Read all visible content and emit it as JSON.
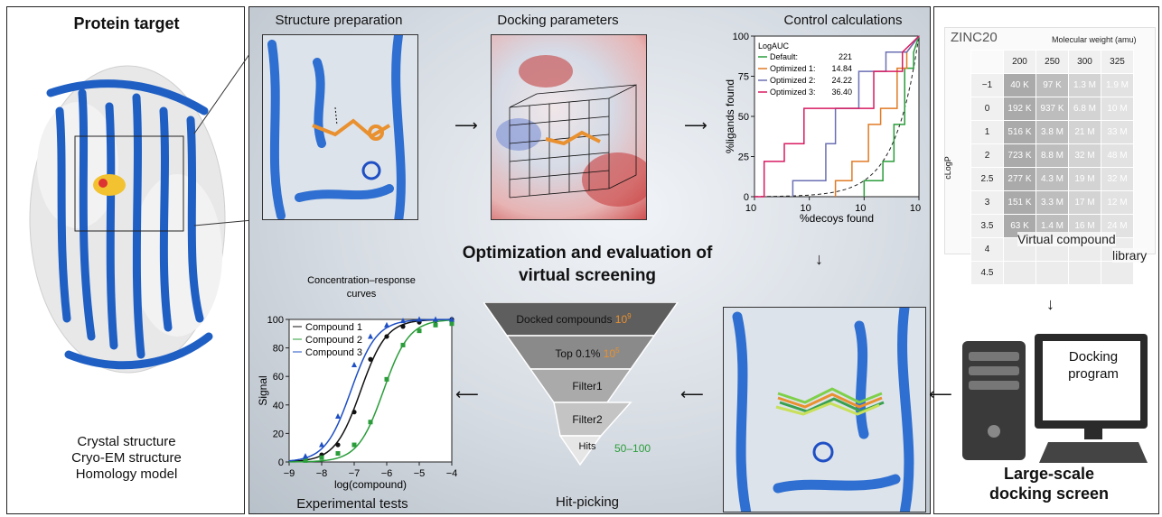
{
  "left_panel": {
    "title": "Protein target",
    "sources": [
      "Crystal structure",
      "Cryo-EM structure",
      "Homology model"
    ]
  },
  "center_panel": {
    "structure_prep_title": "Structure preparation",
    "docking_params_title": "Docking parameters",
    "control_calc_title": "Control calculations",
    "main_title_line1": "Optimization and evaluation of",
    "main_title_line2": "virtual screening",
    "hit_picking_label": "Hit-picking",
    "experimental_label": "Experimental tests",
    "funnel": [
      {
        "label": "Docked compounds",
        "count": "10",
        "exp": "9"
      },
      {
        "label": "Top 0.1%",
        "count": "10",
        "exp": "5"
      },
      {
        "label": "Filter1"
      },
      {
        "label": "Filter2"
      },
      {
        "label": "Hits",
        "count": "50–100"
      }
    ]
  },
  "right_panel": {
    "zinc_title": "ZINC20",
    "mw_label": "Molecular weight (amu)",
    "clogp_label": "cLogP",
    "library_label_1": "Virtual compound",
    "library_label_2": "library",
    "docking_program_1": "Docking",
    "docking_program_2": "program",
    "screen_title_1": "Large-scale",
    "screen_title_2": "docking screen",
    "mw_columns": [
      "200",
      "250",
      "300",
      "325"
    ],
    "rows": [
      {
        "logp": "−1",
        "cells": [
          "40 K",
          "97 K",
          "1.3 M",
          "1.9 M"
        ]
      },
      {
        "logp": "0",
        "cells": [
          "192 K",
          "937 K",
          "6.8 M",
          "10 M"
        ]
      },
      {
        "logp": "1",
        "cells": [
          "516 K",
          "3.8 M",
          "21 M",
          "33 M"
        ]
      },
      {
        "logp": "2",
        "cells": [
          "723 K",
          "8.8 M",
          "32 M",
          "48 M"
        ]
      },
      {
        "logp": "2.5",
        "cells": [
          "277 K",
          "4.3 M",
          "19 M",
          "32 M"
        ]
      },
      {
        "logp": "3",
        "cells": [
          "151 K",
          "3.3 M",
          "17 M",
          "12 M"
        ]
      },
      {
        "logp": "3.5",
        "cells": [
          "63 K",
          "1.4 M",
          "16 M",
          "24 M"
        ]
      },
      {
        "logp": "4",
        "cells": [
          "",
          "",
          "",
          ""
        ]
      },
      {
        "logp": "4.5",
        "cells": [
          "",
          "",
          "",
          ""
        ]
      }
    ]
  },
  "colors": {
    "protein": "#2f6fd1",
    "ligand": "#e9902f",
    "hits_green": "#2a9d3a",
    "exp_orange": "#e9902f"
  },
  "chart_data": [
    {
      "type": "line",
      "title": "Control calculations",
      "xlabel": "%decoys found",
      "ylabel": "%ligands found",
      "xscale": "log",
      "xlim": [
        0.1,
        100
      ],
      "ylim": [
        0,
        100
      ],
      "x_ticks": [
        "10",
        "10",
        "10",
        "10"
      ],
      "x_tick_exps": [
        "−1",
        "0",
        "1",
        "2"
      ],
      "y_ticks": [
        "0",
        "25",
        "50",
        "75",
        "100"
      ],
      "legend_title": "LogAUC",
      "series": [
        {
          "name": "Default:",
          "value": "221",
          "color": "#2a9d3a",
          "points": [
            [
              10,
              0
            ],
            [
              10,
              10
            ],
            [
              22,
              10
            ],
            [
              22,
              22
            ],
            [
              35,
              22
            ],
            [
              35,
              45
            ],
            [
              55,
              45
            ],
            [
              55,
              80
            ],
            [
              80,
              80
            ],
            [
              80,
              90
            ],
            [
              100,
              100
            ]
          ]
        },
        {
          "name": "Optimized 1:",
          "value": "14.84",
          "color": "#e07a24",
          "points": [
            [
              3,
              0
            ],
            [
              3,
              10
            ],
            [
              6,
              10
            ],
            [
              6,
              22
            ],
            [
              12,
              22
            ],
            [
              12,
              45
            ],
            [
              20,
              45
            ],
            [
              20,
              55
            ],
            [
              40,
              55
            ],
            [
              40,
              80
            ],
            [
              60,
              80
            ],
            [
              60,
              90
            ],
            [
              100,
              100
            ]
          ]
        },
        {
          "name": "Optimized 2:",
          "value": "24.22",
          "color": "#6a6fb3",
          "points": [
            [
              0.5,
              0
            ],
            [
              0.5,
              10
            ],
            [
              2,
              10
            ],
            [
              2,
              33
            ],
            [
              3,
              33
            ],
            [
              3,
              55
            ],
            [
              8,
              55
            ],
            [
              8,
              78
            ],
            [
              25,
              78
            ],
            [
              25,
              90
            ],
            [
              60,
              90
            ],
            [
              100,
              100
            ]
          ]
        },
        {
          "name": "Optimized 3:",
          "value": "36.40",
          "color": "#d81b60",
          "points": [
            [
              0.1,
              0
            ],
            [
              0.15,
              0
            ],
            [
              0.15,
              22
            ],
            [
              0.35,
              22
            ],
            [
              0.35,
              33
            ],
            [
              0.8,
              33
            ],
            [
              0.8,
              55
            ],
            [
              15,
              55
            ],
            [
              15,
              78
            ],
            [
              50,
              78
            ],
            [
              50,
              90
            ],
            [
              100,
              100
            ]
          ]
        }
      ],
      "random_line": "dashed"
    },
    {
      "type": "scatter",
      "title": "Concentration–response curves",
      "xlabel": "log(compound)",
      "ylabel": "Signal",
      "xlim": [
        -9,
        -4
      ],
      "ylim": [
        0,
        100
      ],
      "x_ticks": [
        "−9",
        "−8",
        "−7",
        "−6",
        "−5",
        "−4"
      ],
      "y_ticks": [
        "0",
        "20",
        "40",
        "60",
        "80",
        "100"
      ],
      "series": [
        {
          "name": "Compound 1",
          "color": "#111111",
          "marker": "circle",
          "ec50": -6.8,
          "x": [
            -8.5,
            -8,
            -7.5,
            -7,
            -6.5,
            -6,
            -5.5,
            -5,
            -4.5,
            -4
          ],
          "y": [
            2,
            5,
            12,
            35,
            72,
            88,
            95,
            98,
            99,
            100
          ]
        },
        {
          "name": "Compound 2",
          "color": "#2a9d3a",
          "marker": "square",
          "ec50": -6.1,
          "x": [
            -8.5,
            -8,
            -7.5,
            -7,
            -6.5,
            -6,
            -5.5,
            -5,
            -4.5,
            -4
          ],
          "y": [
            1,
            3,
            6,
            12,
            28,
            58,
            82,
            92,
            96,
            97
          ]
        },
        {
          "name": "Compound 3",
          "color": "#1f4fc4",
          "marker": "triangle",
          "ec50": -7.1,
          "x": [
            -8.5,
            -8,
            -7.5,
            -7,
            -6.5,
            -6,
            -5.5,
            -5,
            -4.5,
            -4
          ],
          "y": [
            4,
            12,
            32,
            68,
            88,
            96,
            99,
            100,
            101,
            101
          ]
        }
      ]
    }
  ]
}
